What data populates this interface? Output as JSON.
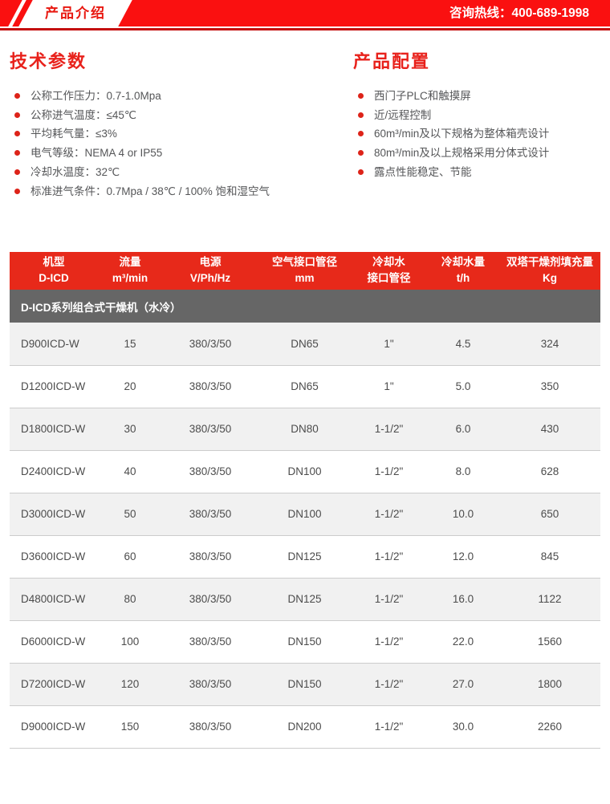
{
  "top_bar": {
    "badge": "产品介绍",
    "hotline": "咨询热线：400-689-1998"
  },
  "tech_params": {
    "title": "技术参数",
    "items": [
      "公称工作压力：0.7-1.0Mpa",
      "公称进气温度：≤45℃",
      "平均耗气量：≤3%",
      "电气等级：NEMA 4 or IP55",
      "冷却水温度：32℃",
      "标准进气条件：0.7Mpa / 38℃ / 100% 饱和湿空气"
    ]
  },
  "product_config": {
    "title": "产品配置",
    "items": [
      "西门子PLC和触摸屏",
      "近/远程控制",
      "60m³/min及以下规格为整体箱壳设计",
      "80m³/min及以上规格采用分体式设计",
      "露点性能稳定、节能"
    ]
  },
  "table": {
    "headers": [
      {
        "line1": "机型",
        "line2": "D-ICD"
      },
      {
        "line1": "流量",
        "line2": "m³/min"
      },
      {
        "line1": "电源",
        "line2": "V/Ph/Hz"
      },
      {
        "line1": "空气接口管径",
        "line2": "mm"
      },
      {
        "line1": "冷却水",
        "line2": "接口管径"
      },
      {
        "line1": "冷却水量",
        "line2": "t/h"
      },
      {
        "line1": "双塔干燥剂填充量",
        "line2": "Kg"
      }
    ],
    "group_title": "D-ICD系列组合式干燥机（水冷）",
    "rows": [
      [
        "D900ICD-W",
        "15",
        "380/3/50",
        "DN65",
        "1\"",
        "4.5",
        "324"
      ],
      [
        "D1200ICD-W",
        "20",
        "380/3/50",
        "DN65",
        "1\"",
        "5.0",
        "350"
      ],
      [
        "D1800ICD-W",
        "30",
        "380/3/50",
        "DN80",
        "1-1/2\"",
        "6.0",
        "430"
      ],
      [
        "D2400ICD-W",
        "40",
        "380/3/50",
        "DN100",
        "1-1/2\"",
        "8.0",
        "628"
      ],
      [
        "D3000ICD-W",
        "50",
        "380/3/50",
        "DN100",
        "1-1/2\"",
        "10.0",
        "650"
      ],
      [
        "D3600ICD-W",
        "60",
        "380/3/50",
        "DN125",
        "1-1/2\"",
        "12.0",
        "845"
      ],
      [
        "D4800ICD-W",
        "80",
        "380/3/50",
        "DN125",
        "1-1/2\"",
        "16.0",
        "1122"
      ],
      [
        "D6000ICD-W",
        "100",
        "380/3/50",
        "DN150",
        "1-1/2\"",
        "22.0",
        "1560"
      ],
      [
        "D7200ICD-W",
        "120",
        "380/3/50",
        "DN150",
        "1-1/2\"",
        "27.0",
        "1800"
      ],
      [
        "D9000ICD-W",
        "150",
        "380/3/50",
        "DN200",
        "1-1/2\"",
        "30.0",
        "2260"
      ]
    ]
  },
  "colors": {
    "top_bar_red": "#fa1010",
    "underline_dark_red": "#c40d0d",
    "title_red": "#e8211b",
    "table_header_red": "#e7291a",
    "group_band_gray": "#666666",
    "alt_row_gray": "#f1f1f1",
    "body_text_gray": "#555658"
  }
}
